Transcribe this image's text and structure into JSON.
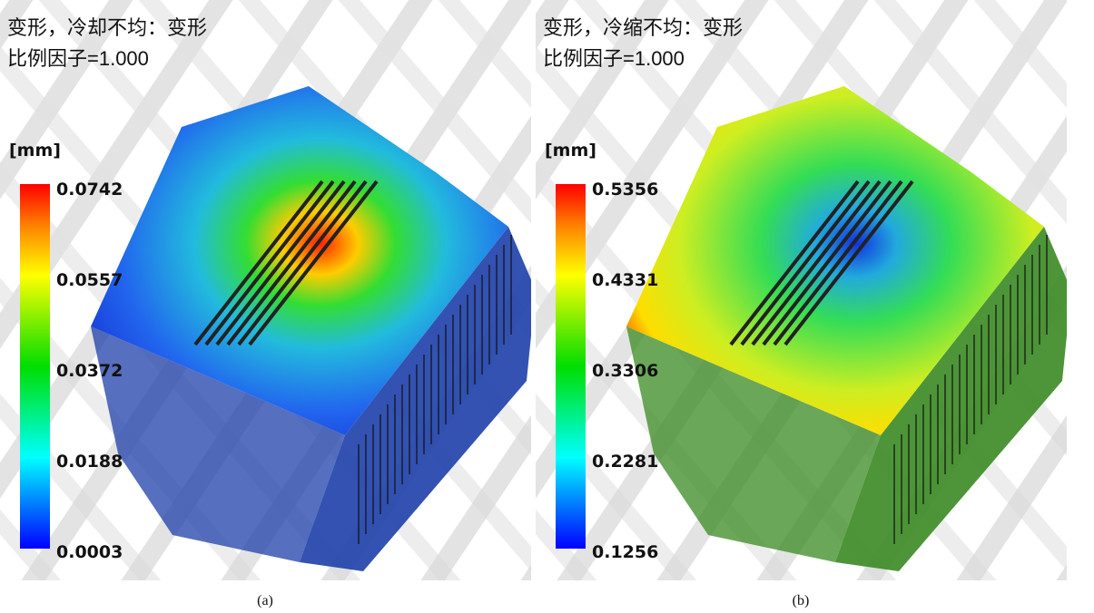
{
  "panels": [
    {
      "title_line1": "变形，冷却不均：变形",
      "title_line2": "比例因子=1.000",
      "unit": "[mm]",
      "legend_labels": [
        "0.0742",
        "0.0557",
        "0.0372",
        "0.0188",
        "0.0003"
      ],
      "caption": "(a)"
    },
    {
      "title_line1": "变形，冷缩不均：变形",
      "title_line2": "比例因子=1.000",
      "unit": "[mm]",
      "legend_labels": [
        "0.5356",
        "0.4331",
        "0.3306",
        "0.2281",
        "0.1256"
      ],
      "caption": "(b)"
    }
  ]
}
